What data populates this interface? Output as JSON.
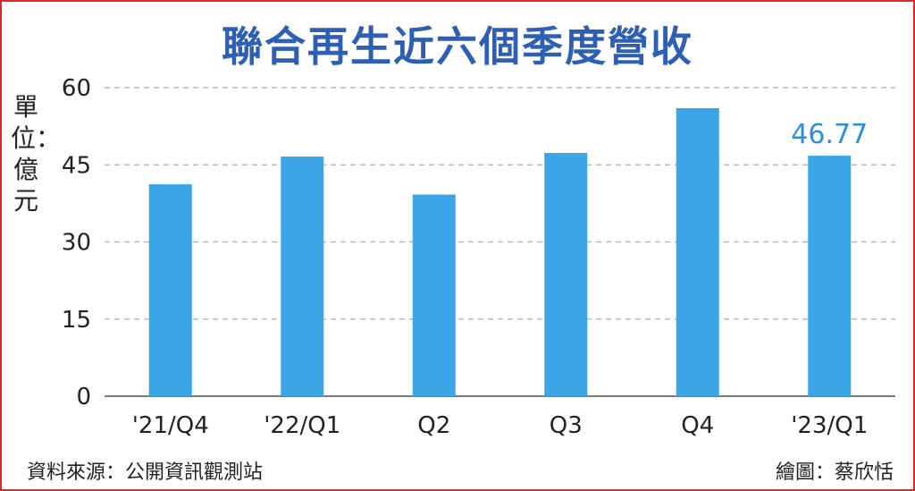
{
  "chart_data": {
    "type": "bar",
    "title": "聯合再生近六個季度營收",
    "ylabel": "單位：億元",
    "categories": [
      "'21/Q4",
      "'22/Q1",
      "Q2",
      "Q3",
      "Q4",
      "'23/Q1"
    ],
    "values": [
      41.2,
      46.6,
      39.2,
      47.3,
      56.0,
      46.77
    ],
    "data_labels": [
      "",
      "",
      "",
      "",
      "",
      "46.77"
    ],
    "yticks": [
      0,
      15,
      30,
      45,
      60
    ],
    "ylim": [
      0,
      60
    ],
    "grid": true,
    "bar_color": "#3aa6e6"
  },
  "footer": {
    "source": "資料來源：公開資訊觀測站",
    "credit": "繪圖：蔡欣恬"
  }
}
